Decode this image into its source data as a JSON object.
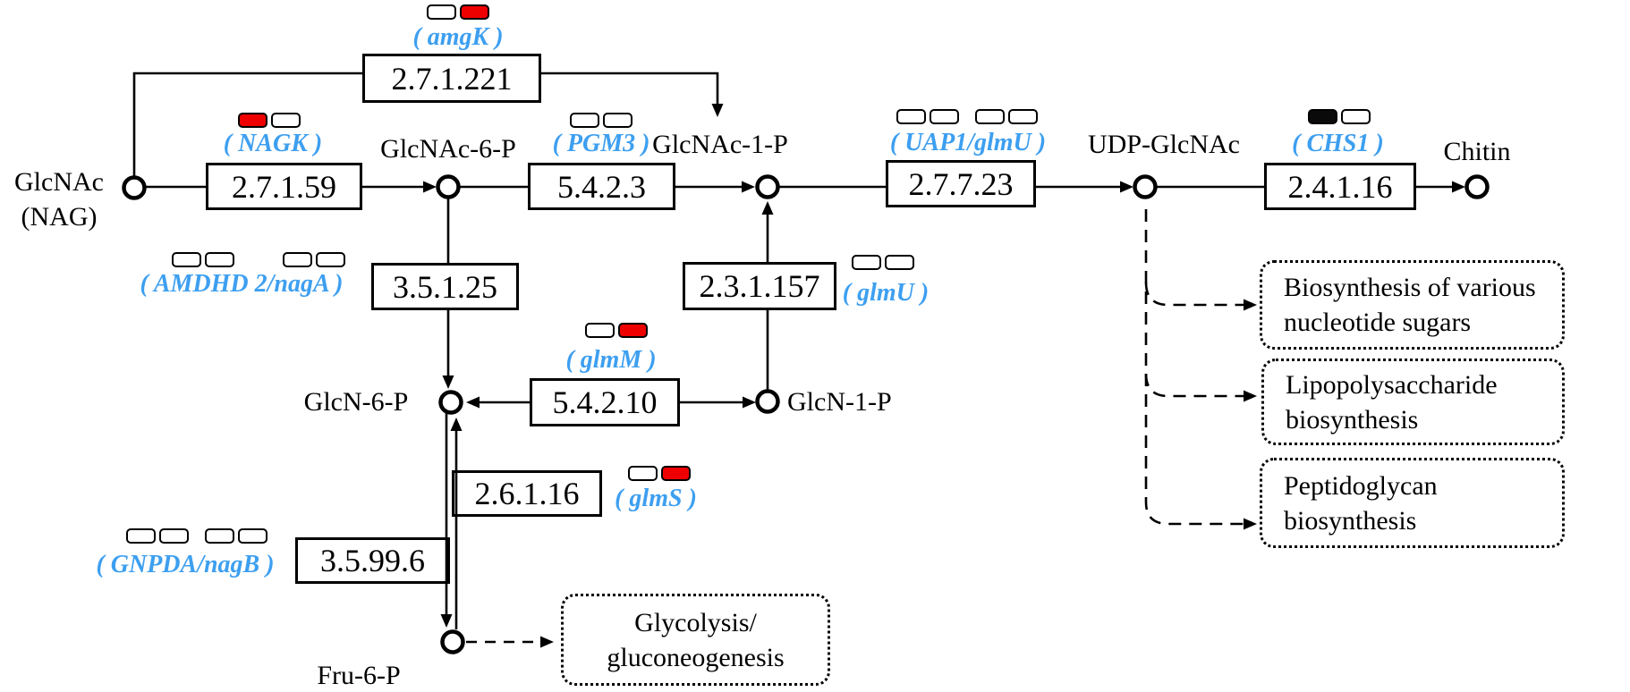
{
  "colors": {
    "gene_label": "#3d9ff0",
    "chip_red": "#ee0000",
    "chip_white": "#ffffff",
    "chip_black": "#0a0a0a",
    "line": "#000000"
  },
  "metabolites": {
    "glcnac": {
      "label": "GlcNAc",
      "sublabel": "(NAG)"
    },
    "glcnac6p": {
      "label": "GlcNAc-6-P"
    },
    "glcnac1p": {
      "label": "GlcNAc-1-P"
    },
    "udpglcnac": {
      "label": "UDP-GlcNAc"
    },
    "chitin": {
      "label": "Chitin"
    },
    "glcn6p": {
      "label": "GlcN-6-P"
    },
    "glcn1p": {
      "label": "GlcN-1-P"
    },
    "fru6p": {
      "label": "Fru-6-P"
    }
  },
  "enzymes": {
    "amgk": {
      "ec": "2.7.1.221",
      "gene": "( amgK )",
      "chips": [
        "white",
        "red"
      ]
    },
    "nagk": {
      "ec": "2.7.1.59",
      "gene": "( NAGK )",
      "chips": [
        "red",
        "white"
      ]
    },
    "pgm3": {
      "ec": "5.4.2.3",
      "gene": "( PGM3 )",
      "chips": [
        "white",
        "white"
      ]
    },
    "uap1": {
      "ec": "2.7.7.23",
      "gene": "( UAP1/glmU )",
      "chips": [
        "white",
        "white",
        "white",
        "white"
      ]
    },
    "chs1": {
      "ec": "2.4.1.16",
      "gene": "( CHS1 )",
      "chips": [
        "black",
        "white"
      ]
    },
    "amdhd": {
      "ec": "3.5.1.25",
      "gene": "( AMDHD 2/nagA )",
      "chips": [
        "white",
        "white",
        "white",
        "white"
      ]
    },
    "glmu": {
      "ec": "2.3.1.157",
      "gene": "( glmU )",
      "chips": [
        "white",
        "white"
      ]
    },
    "glmm": {
      "ec": "5.4.2.10",
      "gene": "( glmM )",
      "chips": [
        "white",
        "red"
      ]
    },
    "glms": {
      "ec": "2.6.1.16",
      "gene": "( glmS )",
      "chips": [
        "white",
        "red"
      ]
    },
    "gnpda": {
      "ec": "3.5.99.6",
      "gene": "( GNPDA/nagB )",
      "chips": [
        "white",
        "white",
        "white",
        "white"
      ]
    }
  },
  "pathways": {
    "nucleotide_sugars": {
      "line1": "Biosynthesis of various",
      "line2": "nucleotide sugars"
    },
    "lipopolysaccharide": {
      "line1": "Lipopolysaccharide",
      "line2": "biosynthesis"
    },
    "peptidoglycan": {
      "line1": "Peptidoglycan",
      "line2": "biosynthesis"
    },
    "glycolysis": {
      "line1": "Glycolysis/",
      "line2": "gluconeogenesis"
    }
  }
}
